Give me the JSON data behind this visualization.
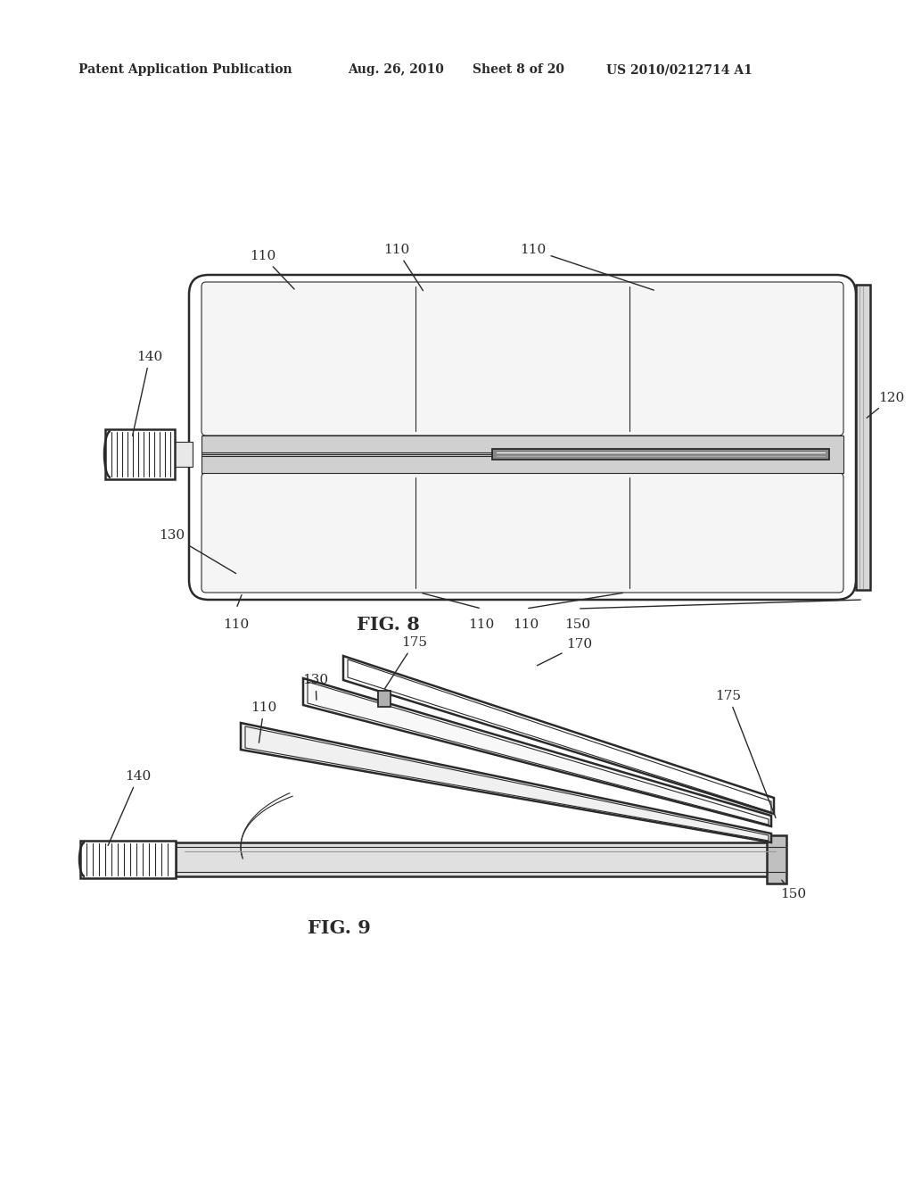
{
  "bg_color": "#ffffff",
  "line_color": "#2a2a2a",
  "header_left": "Patent Application Publication",
  "header_mid1": "Aug. 26, 2010",
  "header_mid2": "Sheet 8 of 20",
  "header_right": "US 2010/0212714 A1",
  "fig8_caption": "FIG. 8",
  "fig9_caption": "FIG. 9"
}
